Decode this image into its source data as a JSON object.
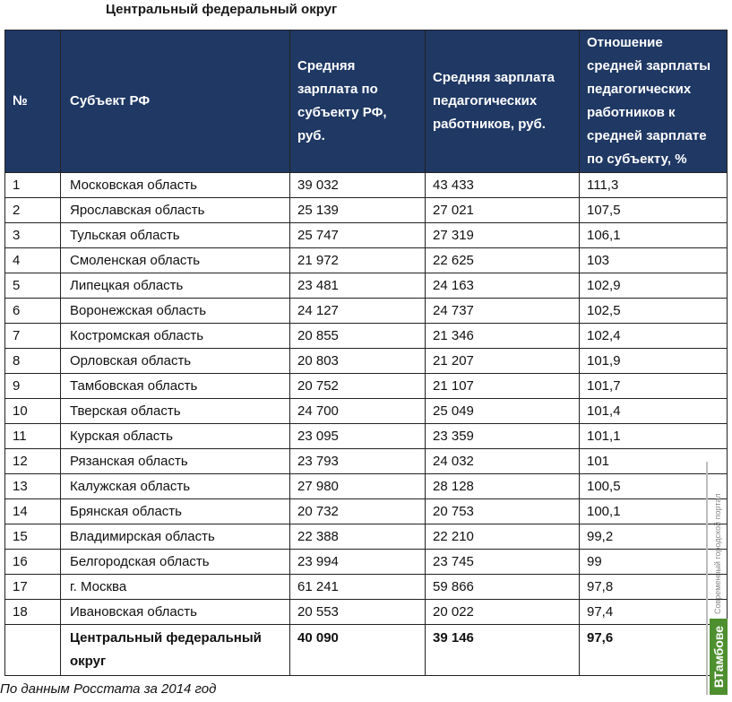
{
  "title": "Центральный федеральный округ",
  "table": {
    "headers": {
      "num": "№",
      "subject": "Субъект РФ",
      "avg_salary": "Средняя зарплата по субъекту РФ, руб.",
      "teacher_salary": "Средняя зарплата педагогических работников, руб.",
      "ratio": "Отношение средней зарплаты педагогических работников к средней зарплате по субъекту, %"
    },
    "rows": [
      {
        "num": "1",
        "subject": "Московская область",
        "avg": "39 032",
        "teacher": "43 433",
        "ratio": "111,3"
      },
      {
        "num": "2",
        "subject": "Ярославская область",
        "avg": "25 139",
        "teacher": "27 021",
        "ratio": "107,5"
      },
      {
        "num": "3",
        "subject": "Тульская область",
        "avg": "25 747",
        "teacher": "27 319",
        "ratio": "106,1"
      },
      {
        "num": "4",
        "subject": "Смоленская область",
        "avg": "21 972",
        "teacher": "22 625",
        "ratio": "103"
      },
      {
        "num": "5",
        "subject": "Липецкая область",
        "avg": "23 481",
        "teacher": "24 163",
        "ratio": "102,9"
      },
      {
        "num": "6",
        "subject": "Воронежская область",
        "avg": "24 127",
        "teacher": "24 737",
        "ratio": "102,5"
      },
      {
        "num": "7",
        "subject": "Костромская область",
        "avg": "20 855",
        "teacher": "21 346",
        "ratio": "102,4"
      },
      {
        "num": "8",
        "subject": "Орловская область",
        "avg": "20 803",
        "teacher": "21 207",
        "ratio": "101,9"
      },
      {
        "num": "9",
        "subject": "Тамбовская область",
        "avg": "20 752",
        "teacher": "21 107",
        "ratio": "101,7"
      },
      {
        "num": "10",
        "subject": "Тверская область",
        "avg": "24 700",
        "teacher": "25 049",
        "ratio": "101,4"
      },
      {
        "num": "11",
        "subject": "Курская область",
        "avg": "23 095",
        "teacher": "23 359",
        "ratio": "101,1"
      },
      {
        "num": "12",
        "subject": "Рязанская область",
        "avg": "23 793",
        "teacher": "24 032",
        "ratio": "101"
      },
      {
        "num": "13",
        "subject": "Калужская область",
        "avg": "27 980",
        "teacher": "28 128",
        "ratio": "100,5"
      },
      {
        "num": "14",
        "subject": "Брянская область",
        "avg": "20 732",
        "teacher": "20 753",
        "ratio": "100,1"
      },
      {
        "num": "15",
        "subject": "Владимирская область",
        "avg": "22 388",
        "teacher": "22 210",
        "ratio": "99,2"
      },
      {
        "num": "16",
        "subject": "Белгородская область",
        "avg": "23 994",
        "teacher": "23 745",
        "ratio": "99"
      },
      {
        "num": "17",
        "subject": "г. Москва",
        "avg": "61 241",
        "teacher": "59 866",
        "ratio": "97,8"
      },
      {
        "num": "18",
        "subject": "Ивановская область",
        "avg": "20 553",
        "teacher": "20 022",
        "ratio": "97,4"
      }
    ],
    "total": {
      "num": "",
      "subject": "Центральный федеральный округ",
      "avg": "40 090",
      "teacher": "39 146",
      "ratio": "97,6"
    }
  },
  "footnote": "По данным Росстата за 2014 год",
  "watermark": {
    "text": "Современный городской портал",
    "logo": "ВТамбове",
    "logo_color": "#4e8f2f"
  },
  "colors": {
    "header_bg": "#1f3864",
    "header_text": "#ffffff"
  }
}
